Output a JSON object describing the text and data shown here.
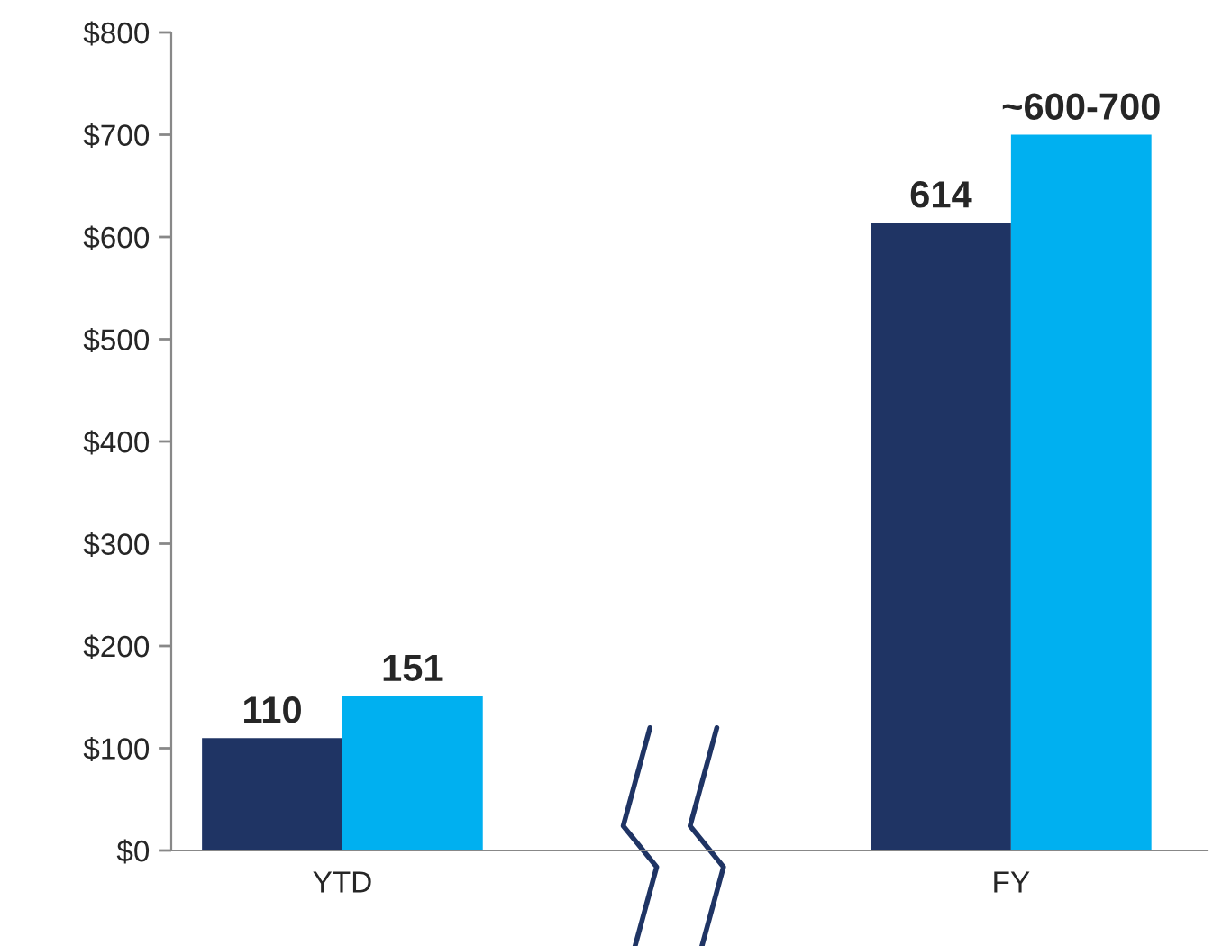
{
  "chart_data": {
    "type": "bar",
    "categories": [
      "YTD",
      "FY"
    ],
    "series": [
      {
        "color": "#1f3464",
        "values": [
          110,
          614
        ],
        "value_labels": [
          "110",
          "614"
        ]
      },
      {
        "color": "#00b0f0",
        "values": [
          151,
          700
        ],
        "value_labels": [
          "151",
          "~600-700"
        ]
      }
    ],
    "ylim": [
      0,
      800
    ],
    "yticks": [
      {
        "value": 0,
        "label": "$0"
      },
      {
        "value": 100,
        "label": "$100"
      },
      {
        "value": 200,
        "label": "$200"
      },
      {
        "value": 300,
        "label": "$300"
      },
      {
        "value": 400,
        "label": "$400"
      },
      {
        "value": 500,
        "label": "$500"
      },
      {
        "value": 600,
        "label": "$600"
      },
      {
        "value": 700,
        "label": "$700"
      },
      {
        "value": 800,
        "label": "$800"
      }
    ],
    "grid": false
  }
}
